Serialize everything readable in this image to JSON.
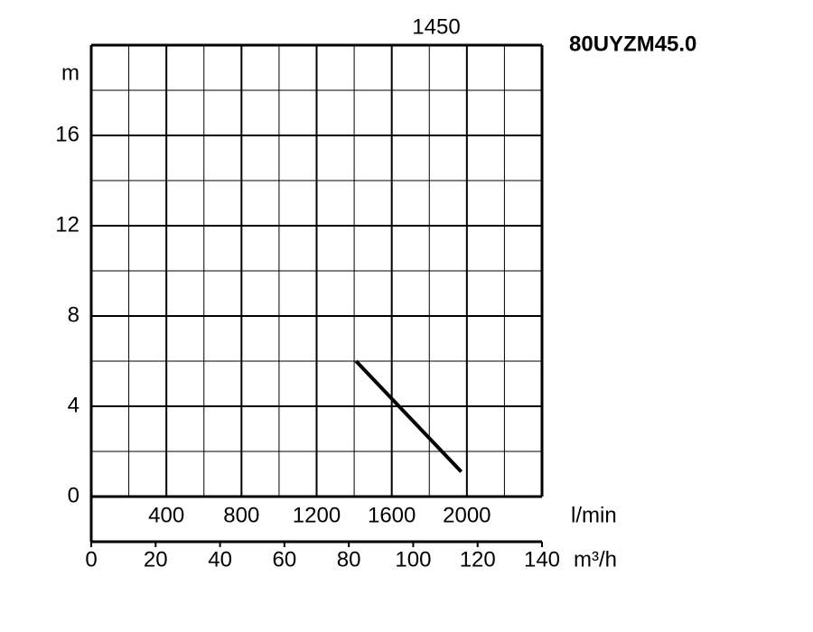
{
  "chart_data": {
    "type": "line",
    "title": "80UYZM45.0",
    "speed": "1450",
    "y_label": "m",
    "ylim": [
      0,
      20
    ],
    "yticks": [
      0,
      4,
      8,
      12,
      16
    ],
    "yminor": [
      2,
      6,
      10,
      14,
      18
    ],
    "x_axes": [
      {
        "label": "l/min",
        "lim": [
          0,
          2400
        ],
        "ticks": [
          400,
          800,
          1200,
          1600,
          2000
        ],
        "minor": [
          200,
          600,
          1000,
          1400,
          1800,
          2200
        ]
      },
      {
        "label": "m³/h",
        "lim": [
          0,
          140
        ],
        "ticks": [
          0,
          20,
          40,
          60,
          80,
          100,
          120,
          140
        ]
      }
    ],
    "grid": true,
    "series": [
      {
        "color": "#000000",
        "x": [
          1410,
          1970
        ],
        "values": [
          6,
          1.1
        ]
      }
    ]
  }
}
